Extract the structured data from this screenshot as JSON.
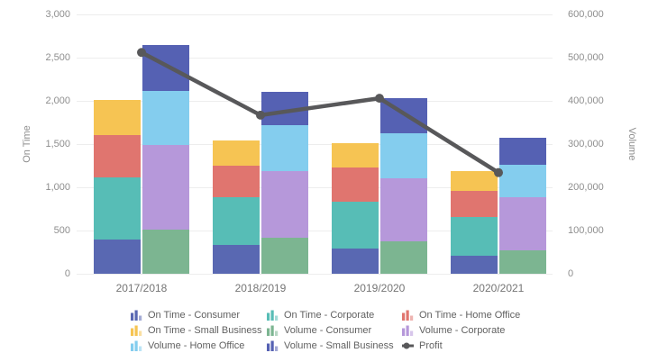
{
  "chart_data": {
    "type": "combo-stacked-bar-line",
    "categories": [
      "2017/2018",
      "2018/2019",
      "2019/2020",
      "2020/2021"
    ],
    "left_axis": {
      "title": "On Time",
      "min": 0,
      "max": 3000,
      "ticks": [
        "3,000",
        "2,500",
        "2,000",
        "1,500",
        "1,000",
        "500",
        "0"
      ]
    },
    "right_axis": {
      "title": "Volume",
      "min": 0,
      "max": 600000,
      "ticks": [
        "600,000",
        "500,000",
        "400,000",
        "300,000",
        "200,000",
        "100,000",
        "0"
      ]
    },
    "bar_groups": [
      {
        "name": "On Time",
        "axis": "left",
        "stacks": [
          {
            "label": "On Time - Consumer",
            "color": "#5968b2",
            "values": [
              400,
              330,
              290,
              210
            ]
          },
          {
            "label": "On Time - Corporate",
            "color": "#57bdb6",
            "values": [
              715,
              560,
              545,
              450
            ]
          },
          {
            "label": "On Time - Home Office",
            "color": "#e0756f",
            "values": [
              485,
              355,
              390,
              300
            ]
          },
          {
            "label": "On Time - Small Business",
            "color": "#f6c453",
            "values": [
              410,
              300,
              290,
              230
            ]
          }
        ]
      },
      {
        "name": "Volume",
        "axis": "right",
        "stacks": [
          {
            "label": "Volume - Consumer",
            "color": "#7cb591",
            "values": [
              102000,
              84000,
              75000,
              54000
            ]
          },
          {
            "label": "Volume - Corporate",
            "color": "#b698da",
            "values": [
              196000,
              154000,
              145000,
              123000
            ]
          },
          {
            "label": "Volume - Home Office",
            "color": "#84cdee",
            "values": [
              125000,
              106000,
              105000,
              76000
            ]
          },
          {
            "label": "Volume - Small Business",
            "color": "#5561b3",
            "values": [
              107000,
              76000,
              82000,
              62000
            ]
          }
        ]
      }
    ],
    "line_series": {
      "label": "Profit",
      "axis": "right",
      "color": "#58585a",
      "values": [
        512000,
        367000,
        406000,
        234000
      ]
    },
    "legend": [
      {
        "label": "On Time - Consumer",
        "color": "#5968b2",
        "icon": "bars"
      },
      {
        "label": "On Time - Corporate",
        "color": "#57bdb6",
        "icon": "bars"
      },
      {
        "label": "On Time - Home Office",
        "color": "#e0756f",
        "icon": "bars"
      },
      {
        "label": "On Time - Small Business",
        "color": "#f6c453",
        "icon": "bars"
      },
      {
        "label": "Volume - Consumer",
        "color": "#7cb591",
        "icon": "bars"
      },
      {
        "label": "Volume - Corporate",
        "color": "#b698da",
        "icon": "bars"
      },
      {
        "label": "Volume - Home Office",
        "color": "#84cdee",
        "icon": "bars"
      },
      {
        "label": "Volume - Small Business",
        "color": "#5561b3",
        "icon": "bars"
      },
      {
        "label": "Profit",
        "color": "#58585a",
        "icon": "line"
      }
    ],
    "layout": {
      "grid_color": "#ededed",
      "background": "#ffffff"
    }
  }
}
